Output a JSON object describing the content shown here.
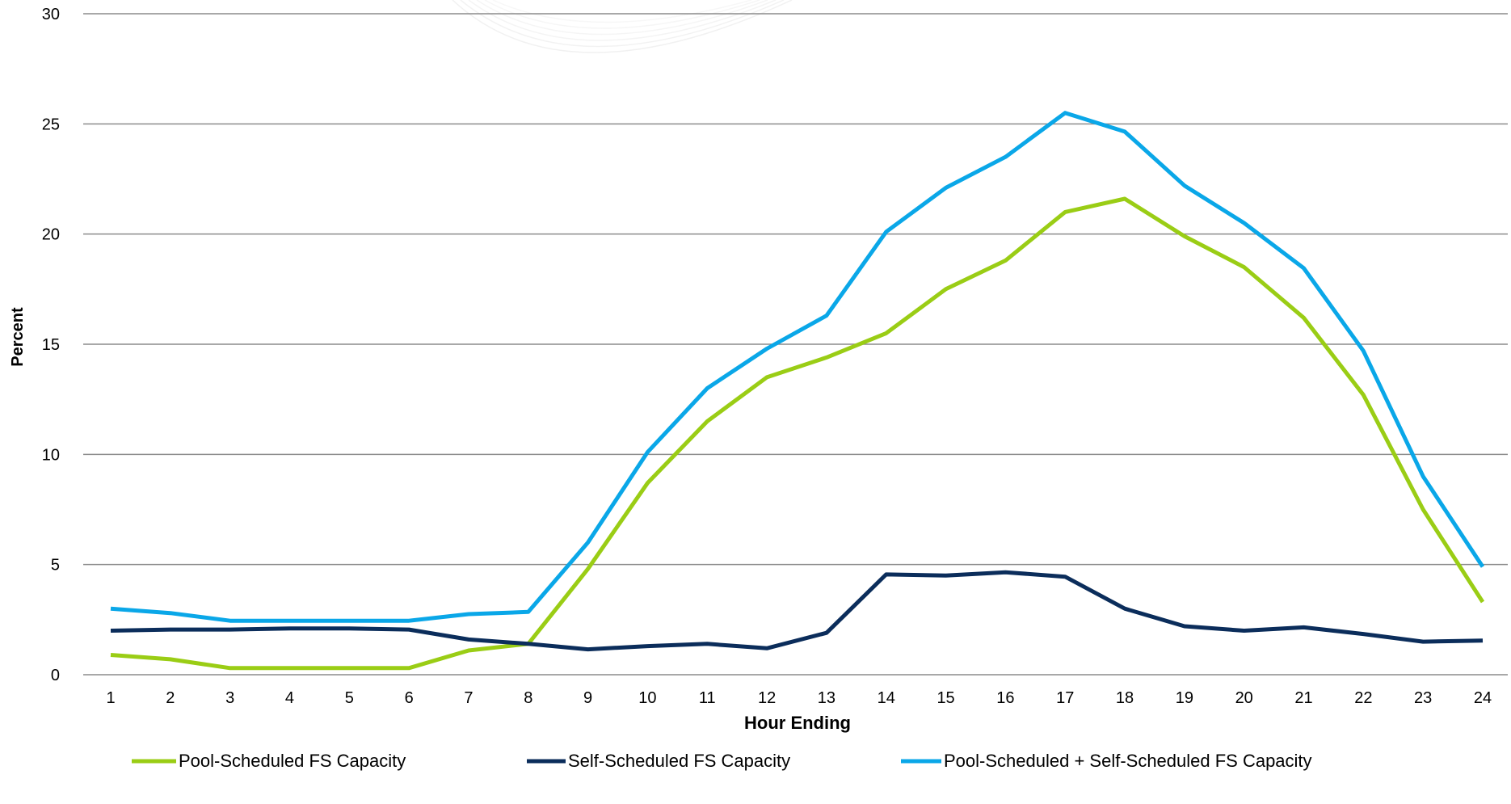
{
  "chart_data": {
    "type": "line",
    "xlabel": "Hour Ending",
    "ylabel": "Percent",
    "ylim": [
      0,
      30
    ],
    "yticks": [
      "0",
      "5",
      "10",
      "15",
      "20",
      "25",
      "30"
    ],
    "categories": [
      "1",
      "2",
      "3",
      "4",
      "5",
      "6",
      "7",
      "8",
      "9",
      "10",
      "11",
      "12",
      "13",
      "14",
      "15",
      "16",
      "17",
      "18",
      "19",
      "20",
      "21",
      "22",
      "23",
      "24"
    ],
    "grid": true,
    "legend_position": "bottom",
    "series": [
      {
        "name": "Pool-Scheduled FS Capacity",
        "color": "#9acd15",
        "values": [
          0.9,
          0.7,
          0.3,
          0.3,
          0.3,
          0.3,
          1.1,
          1.4,
          4.8,
          8.7,
          11.5,
          13.5,
          14.4,
          15.5,
          17.5,
          18.8,
          21.0,
          21.6,
          19.9,
          18.5,
          16.2,
          12.7,
          7.5,
          3.3
        ]
      },
      {
        "name": "Self-Scheduled FS Capacity",
        "color": "#0b2d5b",
        "values": [
          2.0,
          2.05,
          2.05,
          2.1,
          2.1,
          2.05,
          1.6,
          1.4,
          1.15,
          1.3,
          1.4,
          1.2,
          1.9,
          4.55,
          4.5,
          4.65,
          4.45,
          3.0,
          2.2,
          2.0,
          2.15,
          1.85,
          1.5,
          1.55
        ]
      },
      {
        "name": "Pool-Scheduled + Self-Scheduled FS Capacity",
        "color": "#0aa7e8",
        "values": [
          3.0,
          2.8,
          2.45,
          2.45,
          2.45,
          2.45,
          2.75,
          2.85,
          6.0,
          10.1,
          13.0,
          14.8,
          16.3,
          20.1,
          22.1,
          23.5,
          25.5,
          24.65,
          22.2,
          20.5,
          18.45,
          14.7,
          9.0,
          4.9
        ]
      }
    ]
  }
}
